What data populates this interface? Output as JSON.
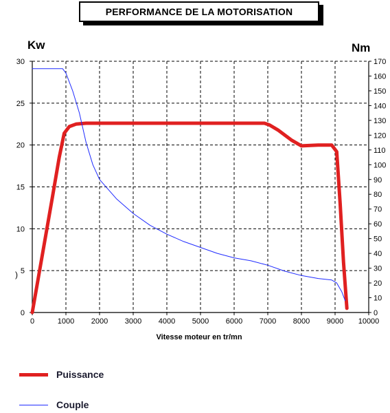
{
  "header": {
    "title": "PERFORMANCE DE LA MOTORISATION"
  },
  "chart_data": {
    "type": "line",
    "title": "PERFORMANCE DE LA MOTORISATION",
    "xlabel": "Vitesse moteur en tr/mn",
    "ylabel_left": "Kw",
    "ylabel_right": "Nm",
    "xlim": [
      0,
      10000
    ],
    "ylim_left": [
      0,
      30
    ],
    "ylim_right": [
      0,
      170
    ],
    "x_ticks": [
      0,
      1000,
      2000,
      3000,
      4000,
      5000,
      6000,
      7000,
      8000,
      9000,
      10000
    ],
    "y_left_ticks": [
      0,
      5,
      10,
      15,
      20,
      25,
      30
    ],
    "y_right_ticks": [
      0,
      10,
      20,
      30,
      40,
      50,
      60,
      70,
      80,
      90,
      100,
      110,
      120,
      130,
      140,
      150,
      160,
      170
    ],
    "grid": true,
    "legend_position": "bottom-left",
    "series": [
      {
        "name": "Puissance",
        "axis": "left",
        "color": "#e02020",
        "x": [
          0,
          200,
          400,
          600,
          800,
          950,
          1100,
          1300,
          1600,
          2000,
          3000,
          4000,
          5000,
          6000,
          6900,
          7050,
          7300,
          7700,
          8000,
          8500,
          8900,
          9050,
          9150,
          9250,
          9350
        ],
        "y": [
          0,
          4.6,
          9.2,
          13.8,
          18.5,
          21.4,
          22.2,
          22.5,
          22.6,
          22.6,
          22.6,
          22.6,
          22.6,
          22.6,
          22.6,
          22.4,
          21.8,
          20.6,
          19.9,
          20.0,
          20.0,
          19.2,
          13.0,
          6.0,
          0.5
        ]
      },
      {
        "name": "Couple",
        "axis": "right",
        "color": "#1f2bff",
        "x": [
          0,
          900,
          1000,
          1200,
          1400,
          1600,
          1800,
          2000,
          2500,
          3000,
          3500,
          4000,
          4500,
          5000,
          5500,
          6000,
          6500,
          7000,
          7500,
          8000,
          8500,
          8900,
          9050,
          9200,
          9300
        ],
        "y": [
          165,
          165,
          162,
          150,
          135,
          115,
          100,
          90,
          77,
          67,
          59,
          53,
          48,
          44,
          40,
          37,
          35,
          32,
          28,
          25,
          23,
          22,
          20,
          14,
          8
        ]
      }
    ]
  },
  "axes": {
    "x_labels": [
      "0",
      "1000",
      "2000",
      "3000",
      "4000",
      "5000",
      "6000",
      "7000",
      "8000",
      "9000",
      "10000"
    ],
    "y_left_labels": [
      "0",
      "5",
      "10",
      "15",
      "20",
      "25",
      "30"
    ],
    "y_right_labels": [
      "0",
      "10",
      "20",
      "30",
      "40",
      "50",
      "60",
      "70",
      "80",
      "90",
      "100",
      "110",
      "120",
      "130",
      "140",
      "150",
      "160",
      "170"
    ],
    "xlabel": "Vitesse moteur en tr/mn",
    "unit_left": "Kw",
    "unit_right": "Nm"
  },
  "legend": {
    "items": [
      {
        "label": "Puissance",
        "color": "#e02020"
      },
      {
        "label": "Couple",
        "color": "#1f2bff"
      }
    ]
  },
  "stray_mark": ")"
}
